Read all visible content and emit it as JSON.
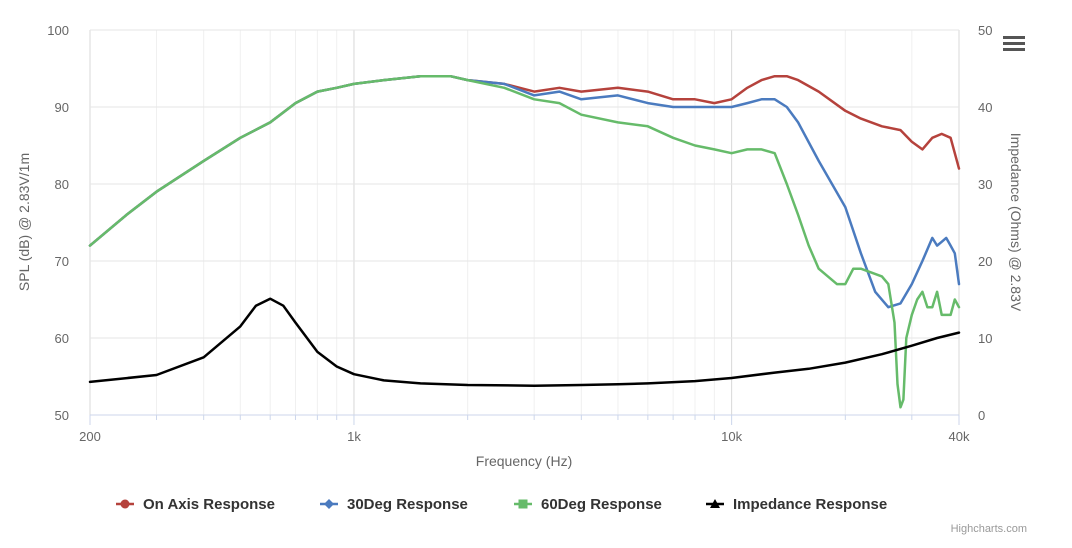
{
  "chart_data": {
    "type": "line",
    "xscale": "log",
    "xlim": [
      200,
      40000
    ],
    "x_ticks": [
      {
        "value": 200,
        "label": "200"
      },
      {
        "value": 1000,
        "label": "1k"
      },
      {
        "value": 10000,
        "label": "10k"
      },
      {
        "value": 40000,
        "label": "40k"
      }
    ],
    "x_minor": [
      300,
      400,
      500,
      600,
      700,
      800,
      900,
      2000,
      3000,
      4000,
      5000,
      6000,
      7000,
      8000,
      9000,
      20000,
      30000
    ],
    "xlabel": "Frequency (Hz)",
    "ylabel": "SPL (dB) @ 2.83V/1m",
    "ylim": [
      50,
      100
    ],
    "y_ticks": [
      "50",
      "60",
      "70",
      "80",
      "90",
      "100"
    ],
    "y2label": "Impedance (Ohms) @ 2.83V",
    "y2lim": [
      0,
      50
    ],
    "y2_ticks": [
      "0",
      "10",
      "20",
      "30",
      "40",
      "50"
    ],
    "grid": true,
    "legend_position": "bottom-center",
    "series": [
      {
        "name": "On Axis Response",
        "color": "#b5423c",
        "axis": "left",
        "marker": "circle",
        "points": [
          [
            200,
            72
          ],
          [
            250,
            76
          ],
          [
            300,
            79
          ],
          [
            400,
            83
          ],
          [
            500,
            86
          ],
          [
            600,
            88
          ],
          [
            700,
            90.5
          ],
          [
            800,
            92
          ],
          [
            900,
            92.5
          ],
          [
            1000,
            93
          ],
          [
            1200,
            93.5
          ],
          [
            1500,
            94
          ],
          [
            1800,
            94
          ],
          [
            2000,
            93.5
          ],
          [
            2500,
            93
          ],
          [
            3000,
            92
          ],
          [
            3500,
            92.5
          ],
          [
            4000,
            92
          ],
          [
            5000,
            92.5
          ],
          [
            6000,
            92
          ],
          [
            7000,
            91
          ],
          [
            8000,
            91
          ],
          [
            9000,
            90.5
          ],
          [
            10000,
            91
          ],
          [
            11000,
            92.5
          ],
          [
            12000,
            93.5
          ],
          [
            13000,
            94
          ],
          [
            14000,
            94
          ],
          [
            15000,
            93.5
          ],
          [
            17000,
            92
          ],
          [
            20000,
            89.5
          ],
          [
            22000,
            88.5
          ],
          [
            25000,
            87.5
          ],
          [
            28000,
            87
          ],
          [
            30000,
            85.5
          ],
          [
            32000,
            84.5
          ],
          [
            34000,
            86
          ],
          [
            36000,
            86.5
          ],
          [
            38000,
            86
          ],
          [
            40000,
            82
          ]
        ]
      },
      {
        "name": "30Deg Response",
        "color": "#4b7bbf",
        "axis": "left",
        "marker": "diamond",
        "points": [
          [
            200,
            72
          ],
          [
            250,
            76
          ],
          [
            300,
            79
          ],
          [
            400,
            83
          ],
          [
            500,
            86
          ],
          [
            600,
            88
          ],
          [
            700,
            90.5
          ],
          [
            800,
            92
          ],
          [
            900,
            92.5
          ],
          [
            1000,
            93
          ],
          [
            1200,
            93.5
          ],
          [
            1500,
            94
          ],
          [
            1800,
            94
          ],
          [
            2000,
            93.5
          ],
          [
            2500,
            93
          ],
          [
            3000,
            91.5
          ],
          [
            3500,
            92
          ],
          [
            4000,
            91
          ],
          [
            5000,
            91.5
          ],
          [
            6000,
            90.5
          ],
          [
            7000,
            90
          ],
          [
            8000,
            90
          ],
          [
            9000,
            90
          ],
          [
            10000,
            90
          ],
          [
            11000,
            90.5
          ],
          [
            12000,
            91
          ],
          [
            13000,
            91
          ],
          [
            14000,
            90
          ],
          [
            15000,
            88
          ],
          [
            17000,
            83
          ],
          [
            20000,
            77
          ],
          [
            22000,
            71
          ],
          [
            24000,
            66
          ],
          [
            26000,
            64
          ],
          [
            28000,
            64.5
          ],
          [
            30000,
            67
          ],
          [
            32000,
            70
          ],
          [
            34000,
            73
          ],
          [
            35000,
            72
          ],
          [
            36000,
            72.5
          ],
          [
            37000,
            73
          ],
          [
            38000,
            72
          ],
          [
            39000,
            71
          ],
          [
            40000,
            67
          ]
        ]
      },
      {
        "name": "60Deg Response",
        "color": "#66bb6a",
        "axis": "left",
        "marker": "square",
        "points": [
          [
            200,
            72
          ],
          [
            250,
            76
          ],
          [
            300,
            79
          ],
          [
            400,
            83
          ],
          [
            500,
            86
          ],
          [
            600,
            88
          ],
          [
            700,
            90.5
          ],
          [
            800,
            92
          ],
          [
            900,
            92.5
          ],
          [
            1000,
            93
          ],
          [
            1200,
            93.5
          ],
          [
            1500,
            94
          ],
          [
            1800,
            94
          ],
          [
            2000,
            93.5
          ],
          [
            2500,
            92.5
          ],
          [
            3000,
            91
          ],
          [
            3500,
            90.5
          ],
          [
            4000,
            89
          ],
          [
            5000,
            88
          ],
          [
            6000,
            87.5
          ],
          [
            7000,
            86
          ],
          [
            8000,
            85
          ],
          [
            9000,
            84.5
          ],
          [
            10000,
            84
          ],
          [
            11000,
            84.5
          ],
          [
            12000,
            84.5
          ],
          [
            13000,
            84
          ],
          [
            14000,
            80
          ],
          [
            15000,
            76
          ],
          [
            16000,
            72
          ],
          [
            17000,
            69
          ],
          [
            19000,
            67
          ],
          [
            20000,
            67
          ],
          [
            21000,
            69
          ],
          [
            22000,
            69
          ],
          [
            25000,
            68
          ],
          [
            26000,
            67
          ],
          [
            27000,
            62
          ],
          [
            27500,
            54
          ],
          [
            28000,
            51
          ],
          [
            28500,
            52
          ],
          [
            29000,
            60
          ],
          [
            30000,
            63
          ],
          [
            31000,
            65
          ],
          [
            32000,
            66
          ],
          [
            33000,
            64
          ],
          [
            34000,
            64
          ],
          [
            35000,
            66
          ],
          [
            36000,
            63
          ],
          [
            37000,
            63
          ],
          [
            38000,
            63
          ],
          [
            39000,
            65
          ],
          [
            40000,
            64
          ]
        ]
      },
      {
        "name": "Impedance Response",
        "color": "#000000",
        "axis": "right",
        "marker": "triangle",
        "points": [
          [
            200,
            4.3
          ],
          [
            300,
            5.2
          ],
          [
            400,
            7.5
          ],
          [
            500,
            11.5
          ],
          [
            550,
            14.2
          ],
          [
            600,
            15.1
          ],
          [
            650,
            14.2
          ],
          [
            700,
            12
          ],
          [
            800,
            8.2
          ],
          [
            900,
            6.3
          ],
          [
            1000,
            5.3
          ],
          [
            1200,
            4.5
          ],
          [
            1500,
            4.1
          ],
          [
            2000,
            3.9
          ],
          [
            3000,
            3.8
          ],
          [
            4000,
            3.9
          ],
          [
            5000,
            4
          ],
          [
            6000,
            4.1
          ],
          [
            8000,
            4.4
          ],
          [
            10000,
            4.8
          ],
          [
            13000,
            5.5
          ],
          [
            16000,
            6
          ],
          [
            20000,
            6.8
          ],
          [
            25000,
            7.9
          ],
          [
            30000,
            9
          ],
          [
            35000,
            10
          ],
          [
            40000,
            10.7
          ]
        ]
      }
    ],
    "credits": "Highcharts.com"
  }
}
